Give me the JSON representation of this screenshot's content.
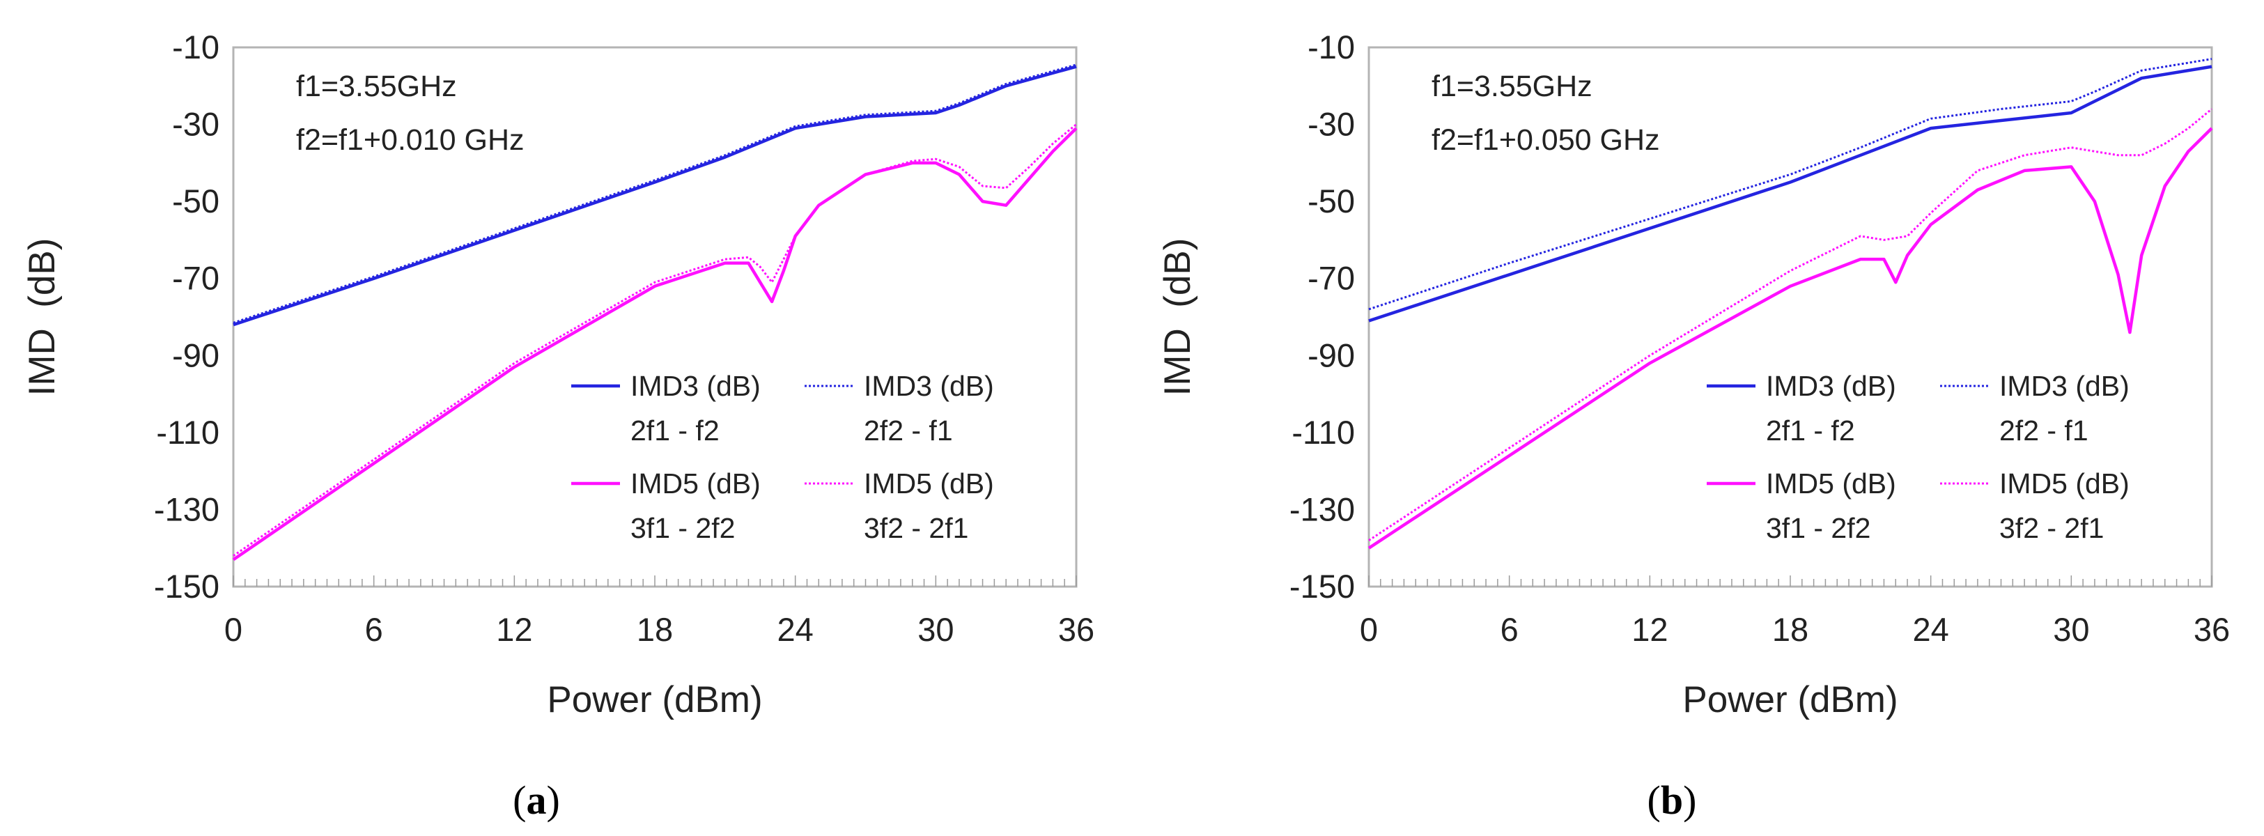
{
  "colors": {
    "imd3": "#2424e0",
    "imd5": "#ff10ff",
    "frame": "#b4b4b4",
    "text": "#222222"
  },
  "chart_data": [
    {
      "type": "line",
      "panel_label": "a",
      "xlabel": "Power (dBm)",
      "ylabel": "IMD  (dB)",
      "xlim": [
        0,
        36
      ],
      "ylim": [
        -150,
        -10
      ],
      "xticks": [
        0,
        6,
        12,
        18,
        24,
        30,
        36
      ],
      "yticks": [
        -10,
        -30,
        -50,
        -70,
        -90,
        -110,
        -130,
        -150
      ],
      "annotations": [
        "f1=3.55GHz",
        "f2=f1+0.010 GHz"
      ],
      "series": [
        {
          "name": "IMD3 (dB)",
          "sub": "2f1 - f2",
          "style": "solid",
          "color": "#2424e0",
          "x": [
            0,
            6,
            12,
            18,
            21,
            24,
            27,
            30,
            31,
            33,
            36
          ],
          "y": [
            -82,
            -70,
            -57.5,
            -45,
            -38.5,
            -31,
            -28,
            -27,
            -25,
            -20,
            -15
          ]
        },
        {
          "name": "IMD3 (dB)",
          "sub": "2f2 - f1",
          "style": "dotted",
          "color": "#2424e0",
          "x": [
            0,
            6,
            12,
            18,
            21,
            24,
            27,
            30,
            31,
            33,
            36
          ],
          "y": [
            -81.5,
            -69.5,
            -57,
            -44.5,
            -38,
            -30.5,
            -27.5,
            -26.5,
            -24.5,
            -19.5,
            -14.5
          ]
        },
        {
          "name": "IMD5 (dB)",
          "sub": "3f1 - 2f2",
          "style": "solid",
          "color": "#ff10ff",
          "x": [
            0,
            6,
            12,
            18,
            21,
            22,
            23,
            23.5,
            24,
            25,
            27,
            29,
            30,
            31,
            32,
            33,
            34,
            35,
            36
          ],
          "y": [
            -143,
            -118,
            -93,
            -72,
            -66,
            -66,
            -76,
            -68,
            -59,
            -51,
            -43,
            -40,
            -40,
            -43,
            -50,
            -51,
            -44,
            -37,
            -31
          ]
        },
        {
          "name": "IMD5 (dB)",
          "sub": "3f2 - 2f1",
          "style": "dotted",
          "color": "#ff10ff",
          "x": [
            0,
            6,
            12,
            18,
            21,
            22,
            22.5,
            23,
            24,
            25,
            27,
            29,
            30,
            31,
            32,
            33,
            34,
            35,
            36
          ],
          "y": [
            -142,
            -117,
            -92,
            -71,
            -65,
            -64.5,
            -67,
            -71,
            -59,
            -51,
            -43,
            -39.5,
            -39,
            -41,
            -46,
            -46.5,
            -41,
            -35,
            -30
          ]
        }
      ]
    },
    {
      "type": "line",
      "panel_label": "b",
      "xlabel": "Power (dBm)",
      "ylabel": "IMD  (dB)",
      "xlim": [
        0,
        36
      ],
      "ylim": [
        -150,
        -10
      ],
      "xticks": [
        0,
        6,
        12,
        18,
        24,
        30,
        36
      ],
      "yticks": [
        -10,
        -30,
        -50,
        -70,
        -90,
        -110,
        -130,
        -150
      ],
      "annotations": [
        "f1=3.55GHz",
        "f2=f1+0.050 GHz"
      ],
      "series": [
        {
          "name": "IMD3 (dB)",
          "sub": "2f1 - f2",
          "style": "solid",
          "color": "#2424e0",
          "x": [
            0,
            6,
            12,
            18,
            21,
            24,
            27,
            30,
            31,
            33,
            36
          ],
          "y": [
            -81,
            -69,
            -57,
            -45,
            -38,
            -31,
            -29,
            -27,
            -24,
            -18,
            -15
          ]
        },
        {
          "name": "IMD3 (dB)",
          "sub": "2f2 - f1",
          "style": "dotted",
          "color": "#2424e0",
          "x": [
            0,
            6,
            12,
            18,
            21,
            24,
            27,
            30,
            31,
            33,
            36
          ],
          "y": [
            -78,
            -66,
            -54.5,
            -43,
            -36,
            -28.5,
            -26,
            -24,
            -21.5,
            -16,
            -13
          ]
        },
        {
          "name": "IMD5 (dB)",
          "sub": "3f1 - 2f2",
          "style": "solid",
          "color": "#ff10ff",
          "x": [
            0,
            6,
            12,
            18,
            21,
            22,
            22.5,
            23,
            24,
            26,
            28,
            30,
            31,
            32,
            32.5,
            33,
            34,
            35,
            36
          ],
          "y": [
            -140,
            -116,
            -92,
            -72,
            -65,
            -65,
            -71,
            -64,
            -56,
            -47,
            -42,
            -41,
            -50,
            -69,
            -84,
            -64,
            -46,
            -37,
            -31
          ]
        },
        {
          "name": "IMD5 (dB)",
          "sub": "3f2 - 2f1",
          "style": "dotted",
          "color": "#ff10ff",
          "x": [
            0,
            6,
            12,
            18,
            21,
            22,
            23,
            24,
            26,
            28,
            30,
            31,
            32,
            33,
            34,
            35,
            36
          ],
          "y": [
            -138,
            -114,
            -90,
            -68,
            -59,
            -60,
            -59,
            -53,
            -42,
            -38,
            -36,
            -37,
            -38,
            -38,
            -35,
            -31,
            -26
          ]
        }
      ]
    }
  ]
}
